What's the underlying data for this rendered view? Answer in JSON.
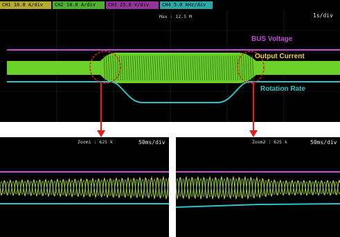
{
  "main": {
    "channels": [
      {
        "label": "CH1 10.0 A/div ~2%",
        "color": "#d6c93a"
      },
      {
        "label": "CH2 10.0 A/div ~2%",
        "color": "#5bd037"
      },
      {
        "label": "CH3 25.0 V/div ~2%",
        "color": "#b03fb6"
      },
      {
        "label": "CH4 5.0 kHz/div ~2%",
        "color": "#36c6c6"
      }
    ],
    "max_readout": "Max : 12.5 M",
    "timebase": "1s/div",
    "labels": {
      "bus_voltage": "BUS Voltage",
      "output_current": "Output Current",
      "rotation_rate": "Rotation Rate"
    },
    "colors": {
      "bus_voltage": "#c24bd6",
      "output_current": "#e8d23a",
      "rotation_rate": "#2ec4c8",
      "waveform": "#6cd02a",
      "callout": "#e02020"
    }
  },
  "zoom_left": {
    "title": "Zoom1 : 625 k",
    "timebase": "50ms/div"
  },
  "zoom_right": {
    "title": "Zoom2 : 625 k",
    "timebase": "50ms/div"
  }
}
